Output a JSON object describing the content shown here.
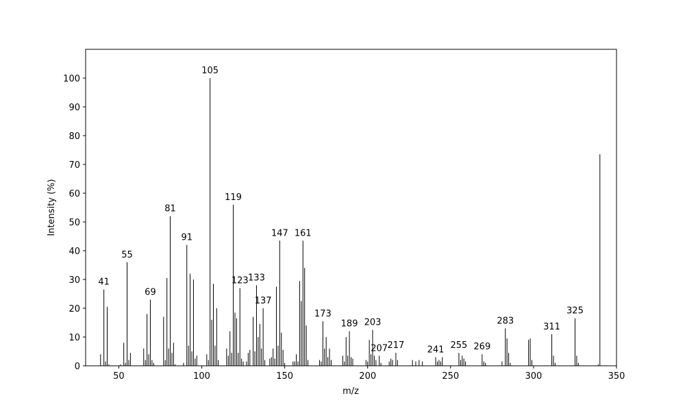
{
  "chart_data": {
    "type": "spectrum",
    "xlabel": "m/z",
    "ylabel": "Intensity (%)",
    "color": "#000000",
    "x": [
      39,
      41,
      42,
      43,
      44,
      51,
      53,
      54,
      55,
      56,
      57,
      65,
      66,
      67,
      68,
      69,
      70,
      71,
      77,
      78,
      79,
      80,
      81,
      82,
      83,
      84,
      89,
      91,
      92,
      93,
      94,
      95,
      96,
      97,
      103,
      104,
      105,
      106,
      107,
      108,
      109,
      110,
      115,
      116,
      117,
      118,
      119,
      120,
      121,
      122,
      123,
      124,
      125,
      127,
      128,
      129,
      131,
      132,
      133,
      134,
      135,
      136,
      137,
      138,
      141,
      142,
      143,
      144,
      145,
      146,
      147,
      148,
      149,
      150,
      155,
      156,
      157,
      158,
      159,
      160,
      161,
      162,
      163,
      164,
      171,
      172,
      173,
      174,
      175,
      176,
      177,
      178,
      185,
      186,
      187,
      188,
      189,
      190,
      191,
      199,
      200,
      201,
      202,
      203,
      204,
      205,
      207,
      208,
      213,
      214,
      215,
      217,
      218,
      227,
      229,
      231,
      233,
      241,
      242,
      243,
      244,
      245,
      255,
      256,
      257,
      258,
      259,
      269,
      270,
      271,
      281,
      283,
      284,
      285,
      286,
      297,
      298,
      299,
      311,
      312,
      313,
      325,
      326,
      327,
      339,
      340
    ],
    "values": [
      4,
      26.5,
      1.5,
      20.5,
      0.5,
      0.5,
      8,
      1,
      36,
      2,
      4.5,
      6,
      2,
      18,
      4,
      23,
      2,
      1,
      17,
      2,
      30.5,
      6,
      52,
      4.5,
      8,
      0.5,
      1,
      42,
      7,
      32,
      5,
      30,
      2.5,
      3.5,
      4,
      2,
      100,
      16,
      28.5,
      7,
      20,
      2,
      6,
      3.5,
      12,
      4.5,
      56,
      18.5,
      16.5,
      4.5,
      27,
      2.5,
      1.5,
      1.5,
      4.5,
      5.5,
      17,
      5,
      28,
      10,
      14.5,
      6,
      20,
      2,
      2.5,
      3,
      6,
      2.5,
      27.5,
      7,
      43.5,
      11.5,
      5.5,
      1,
      1.5,
      1.5,
      4,
      1.5,
      29.5,
      22.5,
      43.5,
      34,
      14,
      2,
      2,
      1.5,
      15.5,
      6,
      10,
      3,
      6,
      2,
      3.5,
      1.5,
      10,
      3.5,
      12,
      3,
      2.5,
      2,
      1.5,
      9,
      4,
      12.5,
      3.5,
      2,
      3.5,
      1,
      1.5,
      2.5,
      2,
      4.5,
      2,
      2,
      1.5,
      2,
      1.5,
      3,
      1.5,
      2,
      1.5,
      3,
      4.5,
      2,
      3.5,
      2.5,
      1.5,
      4,
      1.5,
      1,
      1.5,
      13,
      9.5,
      4.5,
      1,
      9,
      9.5,
      2,
      11,
      3.5,
      1,
      16.5,
      3.5,
      1,
      0.5,
      73.5
    ],
    "annotations": [
      41,
      55,
      69,
      81,
      91,
      105,
      119,
      123,
      133,
      137,
      147,
      161,
      173,
      189,
      203,
      207,
      217,
      241,
      255,
      269,
      283,
      311,
      325
    ],
    "xlim": [
      30,
      350
    ],
    "ylim": [
      0,
      110
    ],
    "xticks": [
      50,
      100,
      150,
      200,
      250,
      300,
      350
    ],
    "yticks": [
      0,
      10,
      20,
      30,
      40,
      50,
      60,
      70,
      80,
      90,
      100
    ]
  }
}
